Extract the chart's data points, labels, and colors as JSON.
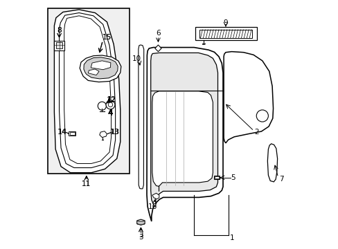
{
  "bg_color": "#ffffff",
  "line_color": "#000000",
  "light_gray": "#e8e8e8",
  "mid_gray": "#d0d0d0"
}
